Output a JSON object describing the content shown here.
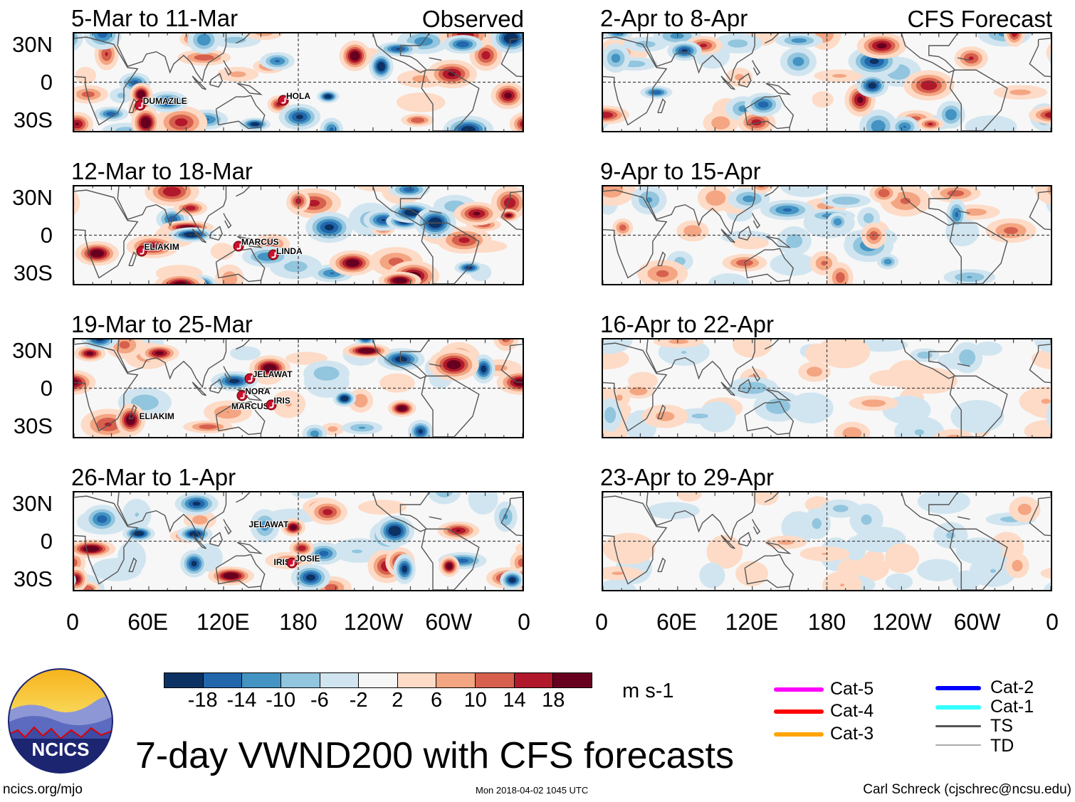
{
  "header": {
    "observed_label": "Observed",
    "forecast_label": "CFS Forecast"
  },
  "panels": [
    {
      "title": "5-Mar to 11-Mar",
      "column": "observed",
      "amplitude": 1.0,
      "storms": [
        {
          "name": "DUMAZILE",
          "lon": 53,
          "lat": -19,
          "marker": true
        },
        {
          "name": "HOLA",
          "lon": 168,
          "lat": -15,
          "marker": true
        }
      ]
    },
    {
      "title": "12-Mar to 18-Mar",
      "column": "observed",
      "amplitude": 1.0,
      "storms": [
        {
          "name": "ELIAKIM",
          "lon": 54,
          "lat": -13,
          "marker": true
        },
        {
          "name": "MARCUS",
          "lon": 132,
          "lat": -9,
          "marker": true
        },
        {
          "name": "LINDA",
          "lon": 160,
          "lat": -16,
          "marker": true
        }
      ]
    },
    {
      "title": "19-Mar to 25-Mar",
      "column": "observed",
      "amplitude": 1.0,
      "storms": [
        {
          "name": "JELAWAT",
          "lon": 141,
          "lat": 8,
          "marker": true
        },
        {
          "name": "NORA",
          "lon": 135,
          "lat": -6,
          "marker": true
        },
        {
          "name": "MARCUS",
          "lon": 124,
          "lat": -11,
          "marker": false
        },
        {
          "name": "IRIS",
          "lon": 158,
          "lat": -14,
          "marker": true
        },
        {
          "name": "ELIAKIM",
          "lon": 50,
          "lat": -19,
          "marker": false
        }
      ]
    },
    {
      "title": "26-Mar to 1-Apr",
      "column": "observed",
      "amplitude": 1.0,
      "storms": [
        {
          "name": "JELAWAT",
          "lon": 138,
          "lat": 18,
          "marker": false
        },
        {
          "name": "IRIS",
          "lon": 158,
          "lat": -13,
          "marker": false
        },
        {
          "name": "JOSIE",
          "lon": 175,
          "lat": -18,
          "marker": true
        }
      ]
    },
    {
      "title": "2-Apr to 8-Apr",
      "column": "forecast",
      "amplitude": 0.85,
      "storms": []
    },
    {
      "title": "9-Apr to 15-Apr",
      "column": "forecast",
      "amplitude": 0.6,
      "storms": []
    },
    {
      "title": "16-Apr to 22-Apr",
      "column": "forecast",
      "amplitude": 0.4,
      "storms": []
    },
    {
      "title": "23-Apr to 29-Apr",
      "column": "forecast",
      "amplitude": 0.33,
      "storms": []
    }
  ],
  "axes": {
    "lat_labels": [
      "30N",
      "0",
      "30S"
    ],
    "lon_labels": [
      "0",
      "60E",
      "120E",
      "180",
      "120W",
      "60W",
      "0"
    ]
  },
  "colorbar": {
    "tick_labels": [
      "-18",
      "-14",
      "-10",
      "-6",
      "-2",
      "2",
      "6",
      "10",
      "14",
      "18"
    ],
    "colors": [
      "#0b3263",
      "#2266ac",
      "#4393c3",
      "#92c5de",
      "#d1e5f0",
      "#f7f7f7",
      "#fddbc7",
      "#f4a582",
      "#d6604d",
      "#b2182b",
      "#67001f"
    ],
    "units": "m s-1"
  },
  "legend": [
    {
      "label": "Cat-5",
      "color": "#ff00ff"
    },
    {
      "label": "Cat-4",
      "color": "#ff0000"
    },
    {
      "label": "Cat-3",
      "color": "#ffa500"
    },
    {
      "label": "Cat-2",
      "color": "#0000ff"
    },
    {
      "label": "Cat-1",
      "color": "#33ffff"
    },
    {
      "label": "TS",
      "color": "#555555"
    },
    {
      "label": "TD",
      "color": "#aaaaaa"
    }
  ],
  "title": "7-day VWND200 with CFS forecasts",
  "logo": {
    "text": "NCICS"
  },
  "footer": {
    "left": "ncics.org/mjo",
    "center": "Mon 2018-04-02 1045 UTC",
    "right": "Carl Schreck (cjschrec@ncsu.edu)"
  }
}
